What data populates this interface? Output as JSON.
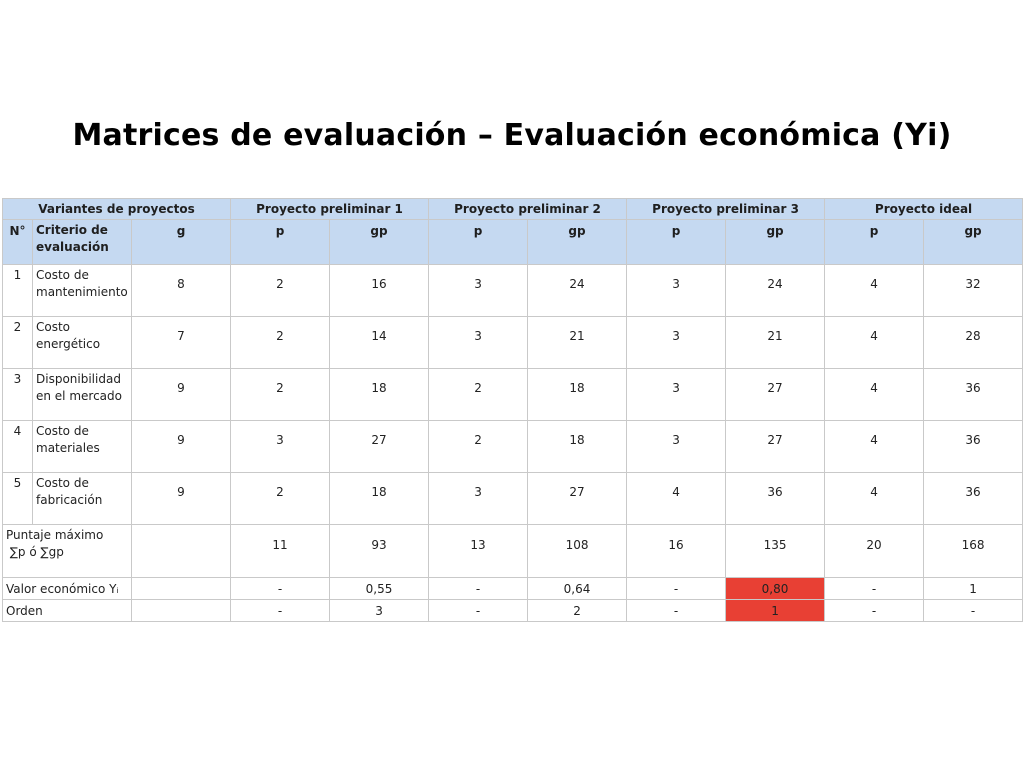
{
  "title": "Matrices de evaluación – Evaluación económica (Yi)",
  "table": {
    "group_headers": [
      "Variantes de proyectos",
      "Proyecto preliminar 1",
      "Proyecto preliminar 2",
      "Proyecto preliminar 3",
      "Proyecto ideal"
    ],
    "col_headers": {
      "n": "N°",
      "criterio": "Criterio de evaluación",
      "g": "g",
      "p": "p",
      "gp": "gp"
    },
    "rows": [
      {
        "n": "1",
        "criterio": "Costo de mantenimiento",
        "g": "8",
        "values": [
          "2",
          "16",
          "3",
          "24",
          "3",
          "24",
          "4",
          "32"
        ]
      },
      {
        "n": "2",
        "criterio": "Costo energético",
        "g": "7",
        "values": [
          "2",
          "14",
          "3",
          "21",
          "3",
          "21",
          "4",
          "28"
        ]
      },
      {
        "n": "3",
        "criterio": "Disponibilidad en el mercado",
        "g": "9",
        "values": [
          "2",
          "18",
          "2",
          "18",
          "3",
          "27",
          "4",
          "36"
        ]
      },
      {
        "n": "4",
        "criterio": "Costo de materiales",
        "g": "9",
        "values": [
          "3",
          "27",
          "2",
          "18",
          "3",
          "27",
          "4",
          "36"
        ]
      },
      {
        "n": "5",
        "criterio": "Costo de fabricación",
        "g": "9",
        "values": [
          "2",
          "18",
          "3",
          "27",
          "4",
          "36",
          "4",
          "36"
        ]
      }
    ],
    "puntaje": {
      "label_line1": "Puntaje máximo",
      "label_line2": "∑p ó ∑gp",
      "values": [
        "11",
        "93",
        "13",
        "108",
        "16",
        "135",
        "20",
        "168"
      ]
    },
    "valor": {
      "label": "Valor económico  Yᵢ",
      "values": [
        "-",
        "0,55",
        "-",
        "0,64",
        "-",
        "0,80",
        "-",
        "1"
      ]
    },
    "orden": {
      "label": "Orden",
      "values": [
        "-",
        "3",
        "-",
        "2",
        "-",
        "1",
        "-",
        "-"
      ]
    },
    "highlight_color": "#e84034",
    "header_color": "#c5d9f1"
  }
}
